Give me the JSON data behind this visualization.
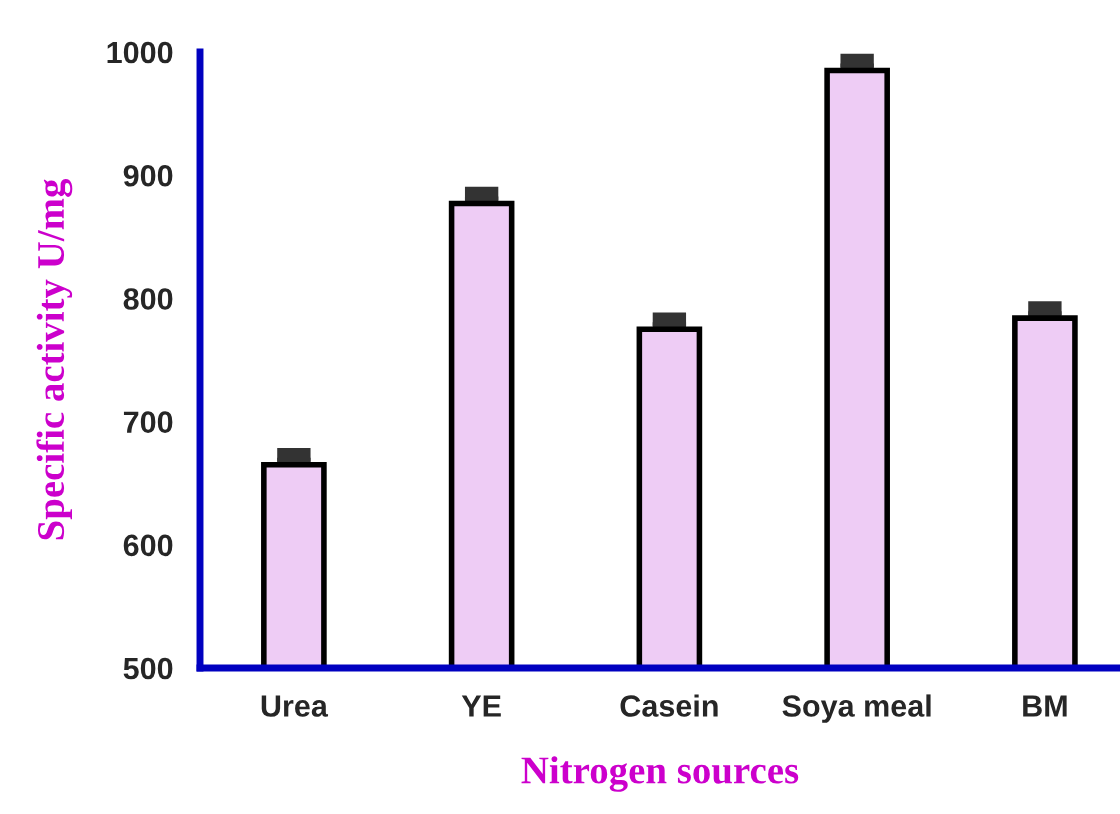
{
  "chart_data": {
    "type": "bar",
    "xlabel": "Nitrogen sources",
    "ylabel": "Specific activity U/mg",
    "categories": [
      "Urea",
      "YE",
      "Casein",
      "Soya meal",
      "BM"
    ],
    "values": [
      665,
      877,
      775,
      985,
      784
    ],
    "errors": [
      8,
      8,
      8,
      8,
      8
    ],
    "color": "#eeccf5",
    "ylim": [
      500,
      1000
    ],
    "yticks": [
      500,
      600,
      700,
      800,
      900,
      1000
    ],
    "grid": false,
    "legend": false
  }
}
